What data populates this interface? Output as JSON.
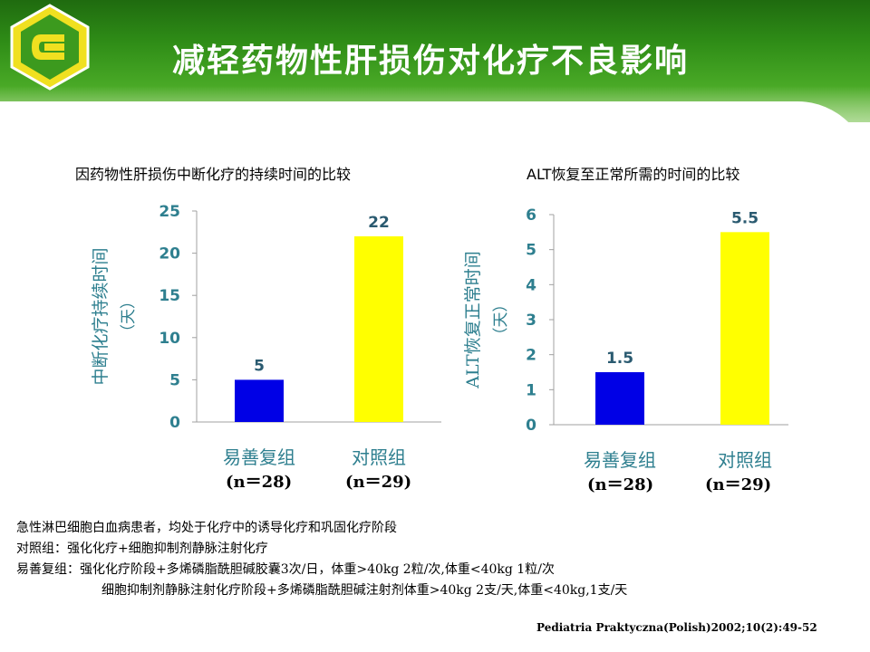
{
  "slide": {
    "title": "减轻药物性肝损伤对化疗不良影响"
  },
  "chart_data": [
    {
      "type": "bar",
      "title": "因药物性肝损伤中断化疗的持续时间的比较",
      "categories": [
        "易善复组",
        "对照组"
      ],
      "category_notes": [
        "(n＝28)",
        "(n＝29)"
      ],
      "values": [
        5,
        22
      ],
      "value_labels": [
        "5",
        "22"
      ],
      "bar_colors": [
        "#0000e6",
        "#ffff00"
      ],
      "ylabel": "中断化疗持续时间（天）",
      "ylabel_lines": [
        "中断化疗持续时间",
        "（天）"
      ],
      "ylim": [
        0,
        25
      ],
      "yticks": [
        0,
        5,
        10,
        15,
        20,
        25
      ],
      "grid": false
    },
    {
      "type": "bar",
      "title": "ALT恢复至正常所需的时间的比较",
      "categories": [
        "易善复组",
        "对照组"
      ],
      "category_notes": [
        "(n＝28)",
        "(n＝29)"
      ],
      "values": [
        1.5,
        5.5
      ],
      "value_labels": [
        "1.5",
        "5.5"
      ],
      "bar_colors": [
        "#0000e6",
        "#ffff00"
      ],
      "ylabel": "ALT恢复正常时间（天）",
      "ylabel_lines": [
        "ALT恢复正常时间",
        "（天）"
      ],
      "ylim": [
        0,
        6
      ],
      "yticks": [
        0,
        1,
        2,
        3,
        4,
        5,
        6
      ],
      "grid": false
    }
  ],
  "notes": [
    "急性淋巴细胞白血病患者，均处于化疗中的诱导化疗和巩固化疗阶段",
    "对照组：强化化疗+细胞抑制剂静脉注射化疗",
    "易善复组：强化化疗阶段+多烯磷脂酰胆碱胶囊3次/日，体重>40kg 2粒/次,体重<40kg 1粒/次",
    "细胞抑制剂静脉注射化疗阶段+多烯磷脂酰胆碱注射剂体重>40kg 2支/天,体重<40kg,1支/天"
  ],
  "citation": "Pediatria Praktyczna(Polish)2002;10(2):49-52",
  "colors": {
    "axis_text": "#2e7f8f",
    "header_green": "#2f8d17"
  }
}
